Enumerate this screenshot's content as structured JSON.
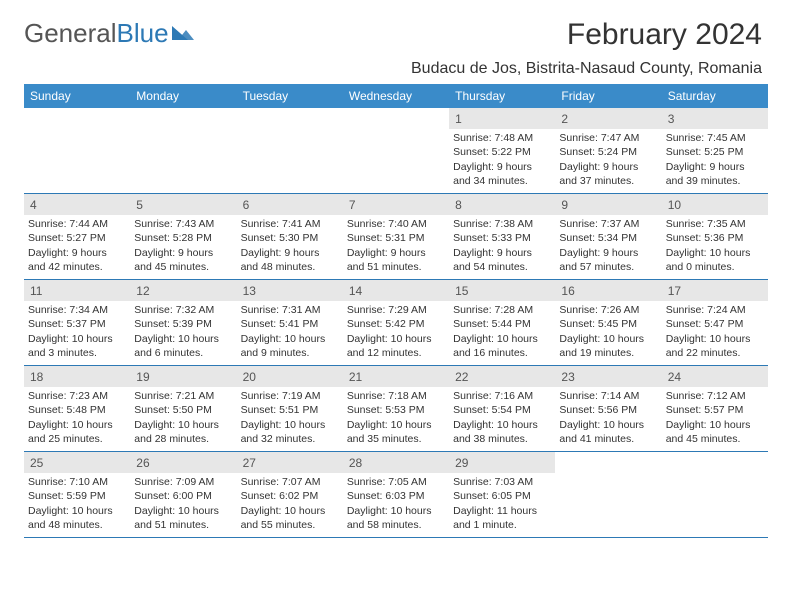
{
  "brand": {
    "part1": "General",
    "part2": "Blue"
  },
  "title": "February 2024",
  "location": "Budacu de Jos, Bistrita-Nasaud County, Romania",
  "colors": {
    "header_bg": "#3a8bc9",
    "accent": "#2d79b5",
    "daynum_bg": "#e7e7e7",
    "text": "#333333"
  },
  "day_headers": [
    "Sunday",
    "Monday",
    "Tuesday",
    "Wednesday",
    "Thursday",
    "Friday",
    "Saturday"
  ],
  "weeks": [
    [
      {
        "n": "",
        "sr": "",
        "ss": "",
        "dl": ""
      },
      {
        "n": "",
        "sr": "",
        "ss": "",
        "dl": ""
      },
      {
        "n": "",
        "sr": "",
        "ss": "",
        "dl": ""
      },
      {
        "n": "",
        "sr": "",
        "ss": "",
        "dl": ""
      },
      {
        "n": "1",
        "sr": "Sunrise: 7:48 AM",
        "ss": "Sunset: 5:22 PM",
        "dl": "Daylight: 9 hours and 34 minutes."
      },
      {
        "n": "2",
        "sr": "Sunrise: 7:47 AM",
        "ss": "Sunset: 5:24 PM",
        "dl": "Daylight: 9 hours and 37 minutes."
      },
      {
        "n": "3",
        "sr": "Sunrise: 7:45 AM",
        "ss": "Sunset: 5:25 PM",
        "dl": "Daylight: 9 hours and 39 minutes."
      }
    ],
    [
      {
        "n": "4",
        "sr": "Sunrise: 7:44 AM",
        "ss": "Sunset: 5:27 PM",
        "dl": "Daylight: 9 hours and 42 minutes."
      },
      {
        "n": "5",
        "sr": "Sunrise: 7:43 AM",
        "ss": "Sunset: 5:28 PM",
        "dl": "Daylight: 9 hours and 45 minutes."
      },
      {
        "n": "6",
        "sr": "Sunrise: 7:41 AM",
        "ss": "Sunset: 5:30 PM",
        "dl": "Daylight: 9 hours and 48 minutes."
      },
      {
        "n": "7",
        "sr": "Sunrise: 7:40 AM",
        "ss": "Sunset: 5:31 PM",
        "dl": "Daylight: 9 hours and 51 minutes."
      },
      {
        "n": "8",
        "sr": "Sunrise: 7:38 AM",
        "ss": "Sunset: 5:33 PM",
        "dl": "Daylight: 9 hours and 54 minutes."
      },
      {
        "n": "9",
        "sr": "Sunrise: 7:37 AM",
        "ss": "Sunset: 5:34 PM",
        "dl": "Daylight: 9 hours and 57 minutes."
      },
      {
        "n": "10",
        "sr": "Sunrise: 7:35 AM",
        "ss": "Sunset: 5:36 PM",
        "dl": "Daylight: 10 hours and 0 minutes."
      }
    ],
    [
      {
        "n": "11",
        "sr": "Sunrise: 7:34 AM",
        "ss": "Sunset: 5:37 PM",
        "dl": "Daylight: 10 hours and 3 minutes."
      },
      {
        "n": "12",
        "sr": "Sunrise: 7:32 AM",
        "ss": "Sunset: 5:39 PM",
        "dl": "Daylight: 10 hours and 6 minutes."
      },
      {
        "n": "13",
        "sr": "Sunrise: 7:31 AM",
        "ss": "Sunset: 5:41 PM",
        "dl": "Daylight: 10 hours and 9 minutes."
      },
      {
        "n": "14",
        "sr": "Sunrise: 7:29 AM",
        "ss": "Sunset: 5:42 PM",
        "dl": "Daylight: 10 hours and 12 minutes."
      },
      {
        "n": "15",
        "sr": "Sunrise: 7:28 AM",
        "ss": "Sunset: 5:44 PM",
        "dl": "Daylight: 10 hours and 16 minutes."
      },
      {
        "n": "16",
        "sr": "Sunrise: 7:26 AM",
        "ss": "Sunset: 5:45 PM",
        "dl": "Daylight: 10 hours and 19 minutes."
      },
      {
        "n": "17",
        "sr": "Sunrise: 7:24 AM",
        "ss": "Sunset: 5:47 PM",
        "dl": "Daylight: 10 hours and 22 minutes."
      }
    ],
    [
      {
        "n": "18",
        "sr": "Sunrise: 7:23 AM",
        "ss": "Sunset: 5:48 PM",
        "dl": "Daylight: 10 hours and 25 minutes."
      },
      {
        "n": "19",
        "sr": "Sunrise: 7:21 AM",
        "ss": "Sunset: 5:50 PM",
        "dl": "Daylight: 10 hours and 28 minutes."
      },
      {
        "n": "20",
        "sr": "Sunrise: 7:19 AM",
        "ss": "Sunset: 5:51 PM",
        "dl": "Daylight: 10 hours and 32 minutes."
      },
      {
        "n": "21",
        "sr": "Sunrise: 7:18 AM",
        "ss": "Sunset: 5:53 PM",
        "dl": "Daylight: 10 hours and 35 minutes."
      },
      {
        "n": "22",
        "sr": "Sunrise: 7:16 AM",
        "ss": "Sunset: 5:54 PM",
        "dl": "Daylight: 10 hours and 38 minutes."
      },
      {
        "n": "23",
        "sr": "Sunrise: 7:14 AM",
        "ss": "Sunset: 5:56 PM",
        "dl": "Daylight: 10 hours and 41 minutes."
      },
      {
        "n": "24",
        "sr": "Sunrise: 7:12 AM",
        "ss": "Sunset: 5:57 PM",
        "dl": "Daylight: 10 hours and 45 minutes."
      }
    ],
    [
      {
        "n": "25",
        "sr": "Sunrise: 7:10 AM",
        "ss": "Sunset: 5:59 PM",
        "dl": "Daylight: 10 hours and 48 minutes."
      },
      {
        "n": "26",
        "sr": "Sunrise: 7:09 AM",
        "ss": "Sunset: 6:00 PM",
        "dl": "Daylight: 10 hours and 51 minutes."
      },
      {
        "n": "27",
        "sr": "Sunrise: 7:07 AM",
        "ss": "Sunset: 6:02 PM",
        "dl": "Daylight: 10 hours and 55 minutes."
      },
      {
        "n": "28",
        "sr": "Sunrise: 7:05 AM",
        "ss": "Sunset: 6:03 PM",
        "dl": "Daylight: 10 hours and 58 minutes."
      },
      {
        "n": "29",
        "sr": "Sunrise: 7:03 AM",
        "ss": "Sunset: 6:05 PM",
        "dl": "Daylight: 11 hours and 1 minute."
      },
      {
        "n": "",
        "sr": "",
        "ss": "",
        "dl": ""
      },
      {
        "n": "",
        "sr": "",
        "ss": "",
        "dl": ""
      }
    ]
  ]
}
